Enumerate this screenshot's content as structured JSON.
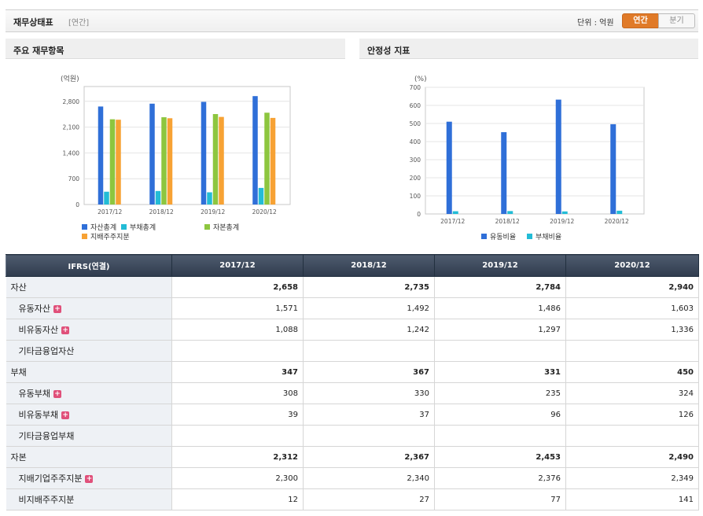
{
  "header": {
    "title": "재무상태표",
    "period_tag": "[연간]",
    "unit_label": "단위 : 억원",
    "tabs": [
      "연간",
      "분기"
    ],
    "active_tab": "연간"
  },
  "panels": {
    "left_title": "주요 재무항목",
    "right_title": "안정성 지표"
  },
  "chart_data": [
    {
      "type": "bar",
      "unit_label": "(억원)",
      "categories": [
        "2017/12",
        "2018/12",
        "2019/12",
        "2020/12"
      ],
      "ylim": [
        0,
        3200
      ],
      "yticks": [
        0,
        700,
        1400,
        2100,
        2800
      ],
      "ytick_labels": [
        "0",
        "700",
        "1,400",
        "2,100",
        "2,800"
      ],
      "series": [
        {
          "name": "자산총계",
          "color": "#2f6fd8",
          "values": [
            2658,
            2735,
            2784,
            2940
          ]
        },
        {
          "name": "부채총계",
          "color": "#23bcd6",
          "values": [
            347,
            367,
            331,
            450
          ]
        },
        {
          "name": "자본총계",
          "color": "#8dc63f",
          "values": [
            2312,
            2367,
            2453,
            2490
          ]
        },
        {
          "name": "지배주주지분",
          "color": "#f7a234",
          "values": [
            2300,
            2340,
            2376,
            2349
          ]
        }
      ]
    },
    {
      "type": "bar",
      "unit_label": "(%)",
      "categories": [
        "2017/12",
        "2018/12",
        "2019/12",
        "2020/12"
      ],
      "ylim": [
        0,
        700
      ],
      "yticks": [
        0,
        100,
        200,
        300,
        400,
        500,
        600,
        700
      ],
      "ytick_labels": [
        "0",
        "100",
        "200",
        "300",
        "400",
        "500",
        "600",
        "700"
      ],
      "series": [
        {
          "name": "유동비율",
          "color": "#2f6fd8",
          "values": [
            510,
            452,
            632,
            496
          ]
        },
        {
          "name": "부채비율",
          "color": "#23bcd6",
          "values": [
            15,
            16,
            14,
            18
          ]
        }
      ]
    }
  ],
  "table": {
    "headers": [
      "IFRS(연결)",
      "2017/12",
      "2018/12",
      "2019/12",
      "2020/12"
    ],
    "rows": [
      {
        "label": "자산",
        "level": "main",
        "expand": false,
        "values": [
          "2,658",
          "2,735",
          "2,784",
          "2,940"
        ]
      },
      {
        "label": "유동자산",
        "level": "sub",
        "expand": true,
        "values": [
          "1,571",
          "1,492",
          "1,486",
          "1,603"
        ]
      },
      {
        "label": "비유동자산",
        "level": "sub",
        "expand": true,
        "values": [
          "1,088",
          "1,242",
          "1,297",
          "1,336"
        ]
      },
      {
        "label": "기타금융업자산",
        "level": "sub",
        "expand": false,
        "values": [
          "",
          "",
          "",
          ""
        ]
      },
      {
        "label": "부채",
        "level": "main",
        "expand": false,
        "values": [
          "347",
          "367",
          "331",
          "450"
        ]
      },
      {
        "label": "유동부채",
        "level": "sub",
        "expand": true,
        "values": [
          "308",
          "330",
          "235",
          "324"
        ]
      },
      {
        "label": "비유동부채",
        "level": "sub",
        "expand": true,
        "values": [
          "39",
          "37",
          "96",
          "126"
        ]
      },
      {
        "label": "기타금융업부채",
        "level": "sub",
        "expand": false,
        "values": [
          "",
          "",
          "",
          ""
        ]
      },
      {
        "label": "자본",
        "level": "main",
        "expand": false,
        "values": [
          "2,312",
          "2,367",
          "2,453",
          "2,490"
        ]
      },
      {
        "label": "지배기업주주지분",
        "level": "sub",
        "expand": true,
        "values": [
          "2,300",
          "2,340",
          "2,376",
          "2,349"
        ]
      },
      {
        "label": "비지배주주지분",
        "level": "sub",
        "expand": false,
        "values": [
          "12",
          "27",
          "77",
          "141"
        ]
      }
    ],
    "expand_icon": "+"
  }
}
